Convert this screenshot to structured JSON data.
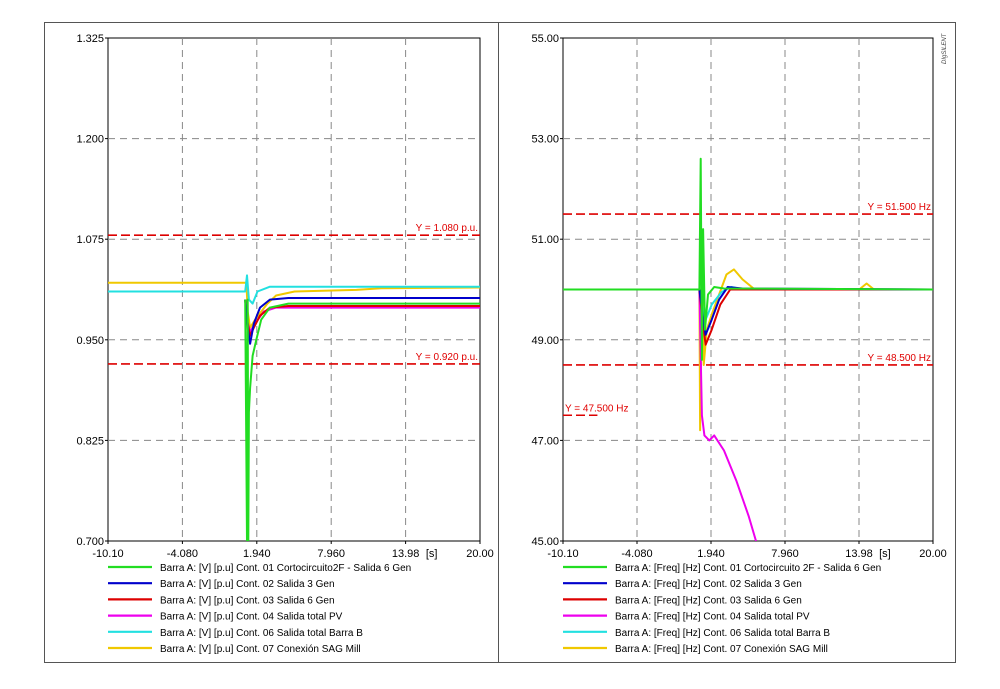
{
  "brand": "DIgSILENT",
  "colors": {
    "green": "#22dd22",
    "blue": "#0000cc",
    "red": "#dd0000",
    "magenta": "#ee00ee",
    "cyan": "#22e0e0",
    "yellow": "#f0c800",
    "refline": "#dd0000",
    "grid": "#888888"
  },
  "chart_data": [
    {
      "type": "line",
      "xlabel_unit": "[s]",
      "xlim": [
        -10.1,
        20.0
      ],
      "ylim": [
        0.7,
        1.325
      ],
      "x_ticks": [
        "-10.10",
        "-4.080",
        "1.940",
        "7.960",
        "13.98",
        "20.00"
      ],
      "y_ticks": [
        "0.700",
        "0.825",
        "0.950",
        "1.075",
        "1.200",
        "1.325"
      ],
      "grid": true,
      "reference_lines": [
        {
          "y": 1.08,
          "label": "Y =  1.080 p.u."
        },
        {
          "y": 0.92,
          "label": "Y =  0.920 p.u."
        }
      ],
      "legend": [
        "Barra A: [V] [p.u] Cont. 01 Cortocircuito2F - Salida 6 Gen",
        "Barra A: [V] [p.u] Cont. 02 Salida 3 Gen",
        "Barra A: [V] [p.u] Cont. 03 Salida 6 Gen",
        "Barra A: [V] [p.u] Cont. 04 Salida total PV",
        "Barra A: [V] [p.u] Cont. 06 Salida total Barra B",
        "Barra A: [V] [p.u] Cont. 07 Conexión SAG Mill"
      ],
      "series": [
        {
          "color_key": "green",
          "points": [
            [
              1.0,
              1.0
            ],
            [
              1.15,
              0.7
            ],
            [
              1.2,
              1.0
            ],
            [
              1.25,
              0.7
            ],
            [
              1.3,
              0.86
            ],
            [
              1.4,
              0.89
            ],
            [
              1.6,
              0.93
            ],
            [
              1.9,
              0.95
            ],
            [
              2.3,
              0.975
            ],
            [
              3.0,
              0.99
            ],
            [
              4.5,
              0.995
            ],
            [
              20.0,
              0.995
            ]
          ]
        },
        {
          "color_key": "blue",
          "points": [
            [
              1.0,
              1.0
            ],
            [
              1.15,
              0.97
            ],
            [
              1.4,
              0.945
            ],
            [
              1.7,
              0.97
            ],
            [
              2.2,
              0.99
            ],
            [
              3.0,
              1.0
            ],
            [
              4.5,
              1.002
            ],
            [
              20.0,
              1.002
            ]
          ]
        },
        {
          "color_key": "red",
          "points": [
            [
              1.0,
              1.0
            ],
            [
              1.15,
              0.975
            ],
            [
              1.4,
              0.955
            ],
            [
              1.7,
              0.965
            ],
            [
              2.2,
              0.98
            ],
            [
              3.0,
              0.99
            ],
            [
              4.5,
              0.992
            ],
            [
              20.0,
              0.992
            ]
          ]
        },
        {
          "color_key": "magenta",
          "points": [
            [
              1.0,
              1.0
            ],
            [
              1.15,
              0.975
            ],
            [
              1.4,
              0.96
            ],
            [
              1.8,
              0.97
            ],
            [
              2.5,
              0.985
            ],
            [
              3.5,
              0.99
            ],
            [
              20.0,
              0.99
            ]
          ]
        },
        {
          "color_key": "cyan",
          "points": [
            [
              -10.1,
              1.01
            ],
            [
              1.0,
              1.01
            ],
            [
              1.15,
              1.03
            ],
            [
              1.3,
              1.0
            ],
            [
              1.6,
              0.995
            ],
            [
              2.0,
              1.01
            ],
            [
              3.0,
              1.016
            ],
            [
              20.0,
              1.016
            ]
          ]
        },
        {
          "color_key": "yellow",
          "points": [
            [
              -10.1,
              1.021
            ],
            [
              1.1,
              1.021
            ],
            [
              1.2,
              0.985
            ],
            [
              1.4,
              0.965
            ],
            [
              1.8,
              0.975
            ],
            [
              2.3,
              0.985
            ],
            [
              2.8,
              0.995
            ],
            [
              3.5,
              1.005
            ],
            [
              5.0,
              1.01
            ],
            [
              10.0,
              1.012
            ],
            [
              12.0,
              1.014
            ],
            [
              20.0,
              1.015
            ]
          ]
        }
      ]
    },
    {
      "type": "line",
      "xlabel_unit": "[s]",
      "xlim": [
        -10.1,
        20.0
      ],
      "ylim": [
        45.0,
        55.0
      ],
      "x_ticks": [
        "-10.10",
        "-4.080",
        "1.940",
        "7.960",
        "13.98",
        "20.00"
      ],
      "y_ticks": [
        "45.00",
        "47.00",
        "49.00",
        "51.00",
        "53.00",
        "55.00"
      ],
      "grid": true,
      "reference_lines": [
        {
          "y": 51.5,
          "label": "Y = 51.500 Hz",
          "x_from": -10.1
        },
        {
          "y": 48.5,
          "label": "Y = 48.500 Hz",
          "x_from": -10.1
        },
        {
          "y": 47.5,
          "label": "Y = 47.500 Hz",
          "x_from": -10.1,
          "x_to": -7.3
        }
      ],
      "legend": [
        "Barra A: [Freq] [Hz] Cont. 01 Cortocircuito 2F - Salida 6 Gen",
        "Barra A: [Freq] [Hz] Cont. 02 Salida 3 Gen",
        "Barra A: [Freq] [Hz] Cont. 03 Salida 6 Gen",
        "Barra A: [Freq] [Hz] Cont. 04 Salida total PV",
        "Barra A: [Freq] [Hz] Cont. 06 Salida total Barra B",
        "Barra A: [Freq] [Hz] Cont. 07 Conexión SAG Mill"
      ],
      "series": [
        {
          "color_key": "green",
          "points": [
            [
              -10.1,
              50.0
            ],
            [
              1.0,
              50.0
            ],
            [
              1.1,
              52.6
            ],
            [
              1.2,
              48.6
            ],
            [
              1.3,
              51.2
            ],
            [
              1.45,
              49.2
            ],
            [
              1.7,
              49.9
            ],
            [
              2.2,
              50.05
            ],
            [
              3.0,
              50.02
            ],
            [
              20.0,
              50.0
            ]
          ]
        },
        {
          "color_key": "blue",
          "points": [
            [
              -10.1,
              50.0
            ],
            [
              1.0,
              50.0
            ],
            [
              1.2,
              49.6
            ],
            [
              1.5,
              49.1
            ],
            [
              2.0,
              49.4
            ],
            [
              2.6,
              49.8
            ],
            [
              3.3,
              50.05
            ],
            [
              4.5,
              50.02
            ],
            [
              20.0,
              50.0
            ]
          ]
        },
        {
          "color_key": "red",
          "points": [
            [
              -10.1,
              50.0
            ],
            [
              1.0,
              50.0
            ],
            [
              1.2,
              49.5
            ],
            [
              1.5,
              48.9
            ],
            [
              2.0,
              49.2
            ],
            [
              2.7,
              49.7
            ],
            [
              3.5,
              50.0
            ],
            [
              5.0,
              50.0
            ],
            [
              20.0,
              50.0
            ]
          ]
        },
        {
          "color_key": "magenta",
          "points": [
            [
              1.0,
              50.0
            ],
            [
              1.2,
              47.5
            ],
            [
              1.4,
              47.1
            ],
            [
              1.8,
              47.0
            ],
            [
              2.2,
              47.1
            ],
            [
              3.0,
              46.8
            ],
            [
              4.0,
              46.2
            ],
            [
              5.0,
              45.5
            ],
            [
              5.6,
              45.0
            ]
          ]
        },
        {
          "color_key": "cyan",
          "points": [
            [
              -10.1,
              50.0
            ],
            [
              1.0,
              50.0
            ],
            [
              1.2,
              49.7
            ],
            [
              1.5,
              49.4
            ],
            [
              2.0,
              49.7
            ],
            [
              2.8,
              49.95
            ],
            [
              3.6,
              50.05
            ],
            [
              4.5,
              50.0
            ],
            [
              20.0,
              50.0
            ]
          ]
        },
        {
          "color_key": "yellow",
          "points": [
            [
              -10.1,
              50.0
            ],
            [
              1.0,
              50.0
            ],
            [
              1.05,
              47.2
            ],
            [
              1.2,
              50.4
            ],
            [
              1.35,
              48.5
            ],
            [
              1.6,
              49.2
            ],
            [
              2.0,
              49.5
            ],
            [
              2.6,
              49.9
            ],
            [
              3.2,
              50.3
            ],
            [
              3.8,
              50.4
            ],
            [
              4.5,
              50.2
            ],
            [
              5.5,
              50.0
            ],
            [
              14.0,
              50.0
            ],
            [
              14.6,
              50.12
            ],
            [
              15.2,
              50.0
            ],
            [
              20.0,
              50.0
            ]
          ]
        }
      ]
    }
  ]
}
